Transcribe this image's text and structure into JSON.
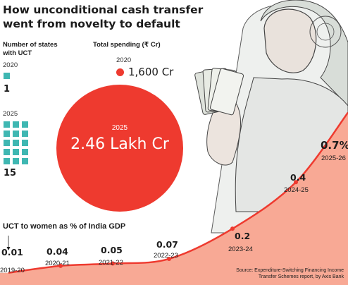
{
  "title_line1": "How unconditional cash transfer",
  "title_line2": "went from novelty to default",
  "states_panel": {
    "label_line1": "Number of states",
    "label_line2": "with UCT",
    "year_2020": "2020",
    "count_2020": "1",
    "year_2025": "2025",
    "count_2025": "15"
  },
  "spending_panel": {
    "label": "Total spending (₹ Cr)",
    "year_2020": "2020",
    "value_2020": "1,600 Cr",
    "year_2025": "2025",
    "value_2025": "2.46 Lakh Cr"
  },
  "gdp_label": "UCT to women as % of India GDP",
  "source_line1": "Source: Expenditure-Switching Financing Income",
  "source_line2": "Transfer Schemes report, by Axis Bank",
  "colors": {
    "accent_red": "#ee3a2f",
    "area_fill": "#f8a995",
    "teal": "#3fb7b2"
  },
  "chart_data": {
    "type": "area",
    "title": "UCT to women as % of India GDP",
    "categories": [
      "2019-20",
      "2020-21",
      "2021-22",
      "2022-23",
      "2023-24",
      "2024-25",
      "2025-26"
    ],
    "values": [
      0.01,
      0.04,
      0.05,
      0.07,
      0.2,
      0.4,
      0.7
    ],
    "labels": [
      "0.01",
      "0.04",
      "0.05",
      "0.07",
      "0.2",
      "0.4",
      "0.7%"
    ]
  }
}
